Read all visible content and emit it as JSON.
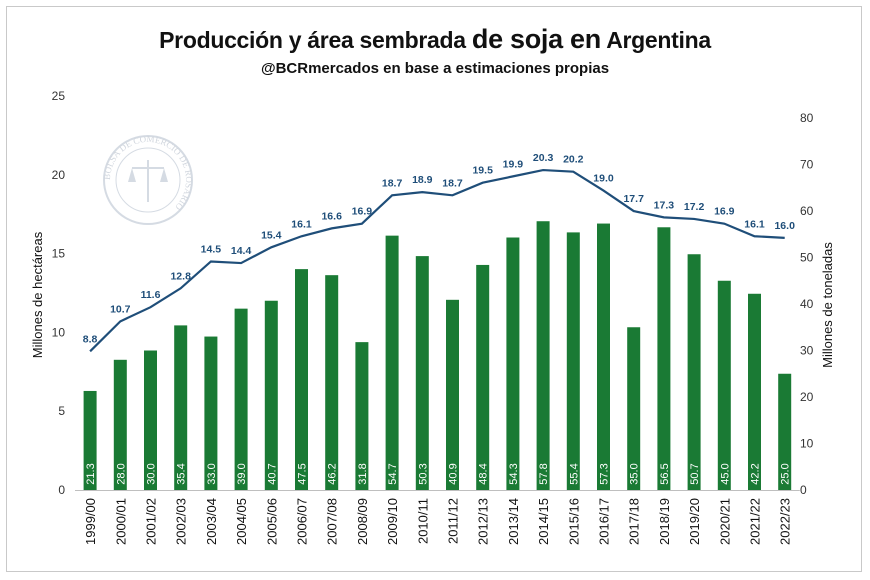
{
  "chart_data": {
    "type": "bar",
    "title_parts": [
      "Producción y área sembrada",
      "de soja en",
      "Argentina"
    ],
    "subtitle": "@BCRmercados en base a estimaciones propias",
    "watermark": "BOLSA DE COMERCIO DE ROSARIO",
    "categories": [
      "1999/00",
      "2000/01",
      "2001/02",
      "2002/03",
      "2003/04",
      "2004/05",
      "2005/06",
      "2006/07",
      "2007/08",
      "2008/09",
      "2009/10",
      "2010/11",
      "2011/12",
      "2012/13",
      "2013/14",
      "2014/15",
      "2015/16",
      "2016/17",
      "2017/18",
      "2018/19",
      "2019/20",
      "2020/21",
      "2021/22",
      "2022/23"
    ],
    "series": [
      {
        "name": "Producción",
        "type": "bar",
        "axis": "right",
        "unit": "Millones de toneladas",
        "color": "#1a7a34",
        "values": [
          21.3,
          28.0,
          30.0,
          35.4,
          33.0,
          39.0,
          40.7,
          47.5,
          46.2,
          31.8,
          54.7,
          50.3,
          40.9,
          48.4,
          54.3,
          57.8,
          55.4,
          57.3,
          35.0,
          56.5,
          50.7,
          45.0,
          42.2,
          25.0
        ],
        "labels": [
          "21.3",
          "28.0",
          "30.0",
          "35.4",
          "33.0",
          "39.0",
          "40.7",
          "47.5",
          "46.2",
          "31.8",
          "54.7",
          "50.3",
          "40.9",
          "48.4",
          "54.3",
          "57.8",
          "55.4",
          "57.3",
          "35.0",
          "56.5",
          "50.7",
          "45.0",
          "42.2",
          "25.0"
        ]
      },
      {
        "name": "Área sembrada",
        "type": "line",
        "axis": "left",
        "unit": "Millones de hectáreas",
        "color": "#1f4e79",
        "values": [
          8.8,
          10.7,
          11.6,
          12.8,
          14.5,
          14.4,
          15.4,
          16.1,
          16.6,
          16.9,
          18.7,
          18.9,
          18.7,
          19.5,
          19.9,
          20.3,
          20.2,
          19.0,
          17.7,
          17.3,
          17.2,
          16.9,
          16.1,
          16.0
        ],
        "labels": [
          "8.8",
          "10.7",
          "11.6",
          "12.8",
          "14.5",
          "14.4",
          "15.4",
          "16.1",
          "16.6",
          "16.9",
          "18.7",
          "18.9",
          "18.7",
          "19.5",
          "19.9",
          "20.3",
          "20.2",
          "19.0",
          "17.7",
          "17.3",
          "17.2",
          "16.9",
          "16.1",
          "16.0"
        ]
      }
    ],
    "ylabel": "Millones de hectáreas",
    "y2label": "Millones de toneladas",
    "ylim": [
      0,
      25
    ],
    "y2lim": [
      0,
      85
    ],
    "yticks": [
      "0",
      "5",
      "10",
      "15",
      "20",
      "25"
    ],
    "y2ticks": [
      "0",
      "10",
      "20",
      "30",
      "40",
      "50",
      "60",
      "70",
      "80"
    ],
    "grid": false
  }
}
